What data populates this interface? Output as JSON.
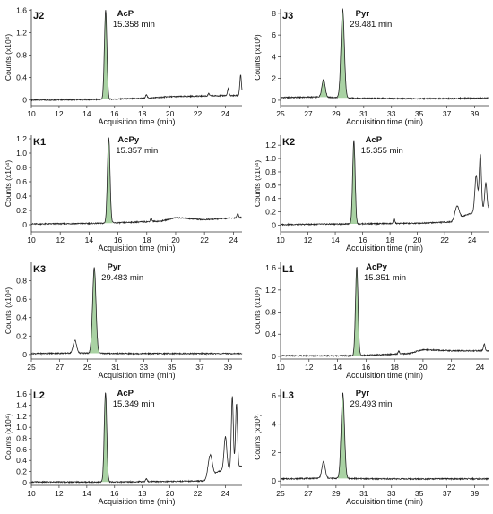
{
  "chart_data": [
    {
      "type": "line",
      "panel_label": "J2",
      "peak_compound": "AcP",
      "peak_time_label": "15.358 min",
      "xlabel": "Acquisition time (min)",
      "ylabel": "Counts (x10⁴)",
      "xlim": [
        10,
        25.2
      ],
      "ylim": [
        -0.1,
        1.62
      ],
      "xticks": [
        "10",
        "12",
        "14",
        "16",
        "18",
        "20",
        "22",
        "24"
      ],
      "yticks": [
        "0",
        "0.4",
        "0.8",
        "1.2",
        "1.6"
      ],
      "peaks": [
        {
          "x": 15.36,
          "y": 1.58,
          "w": 0.09,
          "main": true
        },
        {
          "x": 18.3,
          "y": 0.07,
          "w": 0.05
        },
        {
          "x": 22.8,
          "y": 0.04,
          "w": 0.05
        },
        {
          "x": 24.2,
          "y": 0.12,
          "w": 0.05
        },
        {
          "x": 25.1,
          "y": 0.36,
          "w": 0.06
        }
      ],
      "baseline": [
        [
          10,
          0.0
        ],
        [
          15,
          0.01
        ],
        [
          18,
          0.03
        ],
        [
          20,
          0.06
        ],
        [
          22,
          0.07
        ],
        [
          24,
          0.08
        ],
        [
          25.2,
          0.08
        ]
      ]
    },
    {
      "type": "line",
      "panel_label": "J3",
      "peak_compound": "Pyr",
      "peak_time_label": "29.481 min",
      "xlabel": "Acquisition time (min)",
      "ylabel": "Counts (x10³)",
      "xlim": [
        25,
        40
      ],
      "ylim": [
        -0.5,
        8.4
      ],
      "xticks": [
        "25",
        "27",
        "29",
        "31",
        "33",
        "35",
        "37",
        "39"
      ],
      "yticks": [
        "0",
        "2",
        "4",
        "6",
        "8"
      ],
      "peaks": [
        {
          "x": 28.1,
          "y": 1.6,
          "w": 0.12,
          "main": true
        },
        {
          "x": 29.48,
          "y": 8.2,
          "w": 0.12,
          "main": true
        }
      ],
      "baseline": [
        [
          25,
          0.25
        ],
        [
          28,
          0.3
        ],
        [
          30,
          0.2
        ],
        [
          34,
          0.15
        ],
        [
          37,
          0.15
        ],
        [
          40,
          0.2
        ]
      ]
    },
    {
      "type": "line",
      "panel_label": "K1",
      "peak_compound": "AcPy",
      "peak_time_label": "15.357 min",
      "xlabel": "Acquisition time (min)",
      "ylabel": "Counts (x10⁴)",
      "xlim": [
        10,
        24.6
      ],
      "ylim": [
        -0.1,
        1.25
      ],
      "xticks": [
        "10",
        "12",
        "14",
        "16",
        "18",
        "20",
        "22",
        "24"
      ],
      "yticks": [
        "0",
        "0.2",
        "0.4",
        "0.6",
        "0.8",
        "1.0",
        "1.2"
      ],
      "peaks": [
        {
          "x": 15.36,
          "y": 1.2,
          "w": 0.09,
          "main": true
        },
        {
          "x": 18.3,
          "y": 0.05,
          "w": 0.05
        },
        {
          "x": 24.3,
          "y": 0.06,
          "w": 0.06
        }
      ],
      "baseline": [
        [
          10,
          0.01
        ],
        [
          15,
          0.02
        ],
        [
          19,
          0.05
        ],
        [
          20,
          0.1
        ],
        [
          22,
          0.07
        ],
        [
          24.6,
          0.1
        ]
      ]
    },
    {
      "type": "line",
      "panel_label": "K2",
      "peak_compound": "AcP",
      "peak_time_label": "15.355 min",
      "xlabel": "Acquisition time (min)",
      "ylabel": "Counts (x10⁴)",
      "xlim": [
        10,
        25.2
      ],
      "ylim": [
        -0.1,
        1.35
      ],
      "xticks": [
        "10",
        "12",
        "14",
        "16",
        "18",
        "20",
        "22",
        "24"
      ],
      "yticks": [
        "0",
        "0.2",
        "0.4",
        "0.6",
        "0.8",
        "1.0",
        "1.2"
      ],
      "peaks": [
        {
          "x": 15.36,
          "y": 1.25,
          "w": 0.09,
          "main": true
        },
        {
          "x": 18.3,
          "y": 0.08,
          "w": 0.05
        },
        {
          "x": 22.9,
          "y": 0.2,
          "w": 0.15
        },
        {
          "x": 24.3,
          "y": 0.55,
          "w": 0.1
        },
        {
          "x": 24.6,
          "y": 0.85,
          "w": 0.08
        },
        {
          "x": 25.0,
          "y": 0.4,
          "w": 0.08
        }
      ],
      "baseline": [
        [
          10,
          0.01
        ],
        [
          15,
          0.02
        ],
        [
          20,
          0.03
        ],
        [
          22.5,
          0.05
        ],
        [
          23.5,
          0.15
        ],
        [
          25.2,
          0.25
        ]
      ]
    },
    {
      "type": "line",
      "panel_label": "K3",
      "peak_compound": "Pyr",
      "peak_time_label": "29.483 min",
      "xlabel": "Acquisition time (min)",
      "ylabel": "Counts (x10⁴)",
      "xlim": [
        25,
        40
      ],
      "ylim": [
        -0.05,
        1.0
      ],
      "xticks": [
        "25",
        "27",
        "29",
        "31",
        "33",
        "35",
        "37",
        "39"
      ],
      "yticks": [
        "0",
        "0.2",
        "0.4",
        "0.6",
        "0.8"
      ],
      "peaks": [
        {
          "x": 28.1,
          "y": 0.14,
          "w": 0.12
        },
        {
          "x": 29.48,
          "y": 0.93,
          "w": 0.12,
          "main": true
        }
      ],
      "baseline": [
        [
          25,
          0.01
        ],
        [
          28,
          0.015
        ],
        [
          32,
          0.01
        ],
        [
          40,
          0.01
        ]
      ]
    },
    {
      "type": "line",
      "panel_label": "L1",
      "peak_compound": "AcPy",
      "peak_time_label": "15.351 min",
      "xlabel": "Acquisition time (min)",
      "ylabel": "Counts (x10⁴)",
      "xlim": [
        10,
        24.6
      ],
      "ylim": [
        -0.05,
        1.7
      ],
      "xticks": [
        "10",
        "12",
        "14",
        "16",
        "18",
        "20",
        "22",
        "24"
      ],
      "yticks": [
        "0",
        "0.4",
        "0.8",
        "1.2",
        "1.6"
      ],
      "peaks": [
        {
          "x": 15.35,
          "y": 1.6,
          "w": 0.09,
          "main": true
        },
        {
          "x": 18.3,
          "y": 0.05,
          "w": 0.05
        },
        {
          "x": 24.3,
          "y": 0.12,
          "w": 0.06
        }
      ],
      "baseline": [
        [
          10,
          0.01
        ],
        [
          15,
          0.01
        ],
        [
          19,
          0.05
        ],
        [
          20,
          0.12
        ],
        [
          22,
          0.1
        ],
        [
          24.6,
          0.1
        ]
      ]
    },
    {
      "type": "line",
      "panel_label": "L2",
      "peak_compound": "AcP",
      "peak_time_label": "15.349 min",
      "xlabel": "Acquisition time (min)",
      "ylabel": "Counts (x10⁴)",
      "xlim": [
        10,
        25.2
      ],
      "ylim": [
        -0.05,
        1.7
      ],
      "xticks": [
        "10",
        "12",
        "14",
        "16",
        "18",
        "20",
        "22",
        "24"
      ],
      "yticks": [
        "0",
        "0.2",
        "0.4",
        "0.6",
        "0.8",
        "1.0",
        "1.2",
        "1.4",
        "1.6"
      ],
      "peaks": [
        {
          "x": 15.35,
          "y": 1.62,
          "w": 0.09,
          "main": true
        },
        {
          "x": 18.3,
          "y": 0.06,
          "w": 0.05
        },
        {
          "x": 22.9,
          "y": 0.4,
          "w": 0.15
        },
        {
          "x": 24.0,
          "y": 0.6,
          "w": 0.1
        },
        {
          "x": 24.5,
          "y": 1.3,
          "w": 0.07
        },
        {
          "x": 24.8,
          "y": 1.15,
          "w": 0.07
        }
      ],
      "baseline": [
        [
          10,
          0.01
        ],
        [
          15,
          0.01
        ],
        [
          20,
          0.02
        ],
        [
          22.5,
          0.03
        ],
        [
          23.5,
          0.2
        ],
        [
          25.2,
          0.3
        ]
      ]
    },
    {
      "type": "line",
      "panel_label": "L3",
      "peak_compound": "Pyr",
      "peak_time_label": "29.493 min",
      "xlabel": "Acquisition time (min)",
      "ylabel": "Counts (x10³)",
      "xlim": [
        25,
        40
      ],
      "ylim": [
        -0.3,
        6.5
      ],
      "xticks": [
        "25",
        "27",
        "29",
        "31",
        "33",
        "35",
        "37",
        "39"
      ],
      "yticks": [
        "0",
        "2",
        "4",
        "6"
      ],
      "peaks": [
        {
          "x": 28.1,
          "y": 1.15,
          "w": 0.12
        },
        {
          "x": 29.49,
          "y": 6.0,
          "w": 0.12,
          "main": true
        }
      ],
      "baseline": [
        [
          25,
          0.15
        ],
        [
          28,
          0.2
        ],
        [
          32,
          0.15
        ],
        [
          40,
          0.15
        ]
      ]
    }
  ],
  "colors": {
    "peak_fill": "#a9d2a3",
    "trace": "#222222"
  }
}
